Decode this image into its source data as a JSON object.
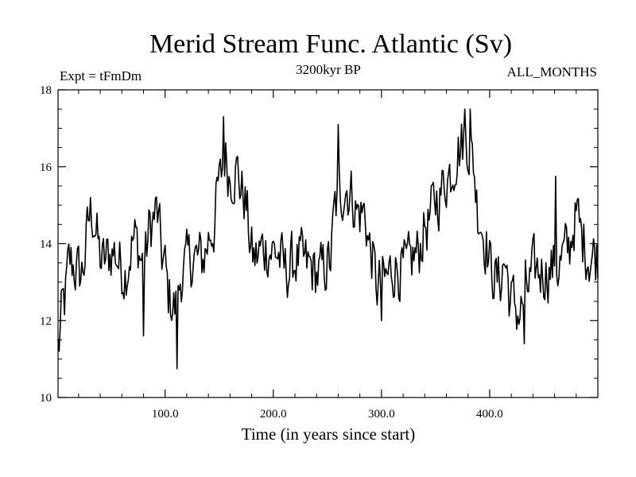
{
  "chart_data": {
    "type": "line",
    "title": "Merid Stream Func. Atlantic (Sv)",
    "subtitle_left": "Expt = tFmDm",
    "subtitle_center": "3200kyr BP",
    "subtitle_right": "ALL_MONTHS",
    "xlabel": "Time (in years since start)",
    "ylabel": "",
    "xlim": [
      1,
      500
    ],
    "ylim": [
      10,
      18
    ],
    "xticks": [
      100,
      200,
      300,
      400
    ],
    "xtick_labels": [
      "100.0",
      "200.0",
      "300.0",
      "400.0"
    ],
    "yticks": [
      10,
      12,
      14,
      16,
      18
    ],
    "ytick_labels": [
      "10",
      "12",
      "14",
      "16",
      "18"
    ],
    "grid": false,
    "series": [
      {
        "name": "Merid Stream Func. Atlantic",
        "anchors_x": [
          1,
          6,
          12,
          22,
          32,
          42,
          52,
          62,
          72,
          80,
          87,
          92,
          98,
          104,
          110,
          116,
          124,
          134,
          144,
          150,
          155,
          160,
          166,
          172,
          182,
          192,
          202,
          212,
          222,
          232,
          242,
          252,
          258,
          262,
          266,
          272,
          278,
          284,
          290,
          296,
          302,
          312,
          322,
          332,
          342,
          352,
          362,
          372,
          378,
          384,
          390,
          396,
          402,
          408,
          414,
          420,
          428,
          434,
          442,
          452,
          462,
          472,
          480,
          486,
          492,
          500
        ],
        "anchors_y": [
          11.3,
          12.4,
          13.5,
          13.2,
          14.8,
          13.5,
          13.8,
          13.3,
          14.1,
          13.5,
          14.5,
          14.8,
          13.6,
          12.6,
          12.3,
          13.3,
          13.6,
          13.6,
          14.4,
          15.5,
          16.3,
          15.8,
          15.9,
          15.3,
          13.6,
          13.9,
          13.8,
          13.3,
          13.6,
          13.4,
          13.2,
          13.5,
          15.0,
          15.3,
          15.5,
          15.3,
          14.8,
          14.8,
          13.8,
          12.9,
          13.0,
          13.4,
          13.3,
          13.7,
          14.5,
          15.2,
          15.8,
          16.5,
          16.8,
          16.2,
          14.8,
          14.1,
          13.3,
          13.0,
          13.5,
          12.5,
          12.2,
          12.8,
          13.3,
          13.3,
          13.4,
          13.8,
          14.7,
          14.1,
          13.7,
          13.7
        ],
        "noise_amplitude": 0.45,
        "spikes": [
          {
            "x": 111,
            "y": 10.75
          },
          {
            "x": 80,
            "y": 11.6
          },
          {
            "x": 154,
            "y": 17.3
          },
          {
            "x": 260,
            "y": 17.1
          },
          {
            "x": 377,
            "y": 17.5
          },
          {
            "x": 382,
            "y": 17.5
          },
          {
            "x": 300,
            "y": 12.0
          },
          {
            "x": 432,
            "y": 11.4
          },
          {
            "x": 461,
            "y": 15.75
          }
        ]
      }
    ]
  }
}
